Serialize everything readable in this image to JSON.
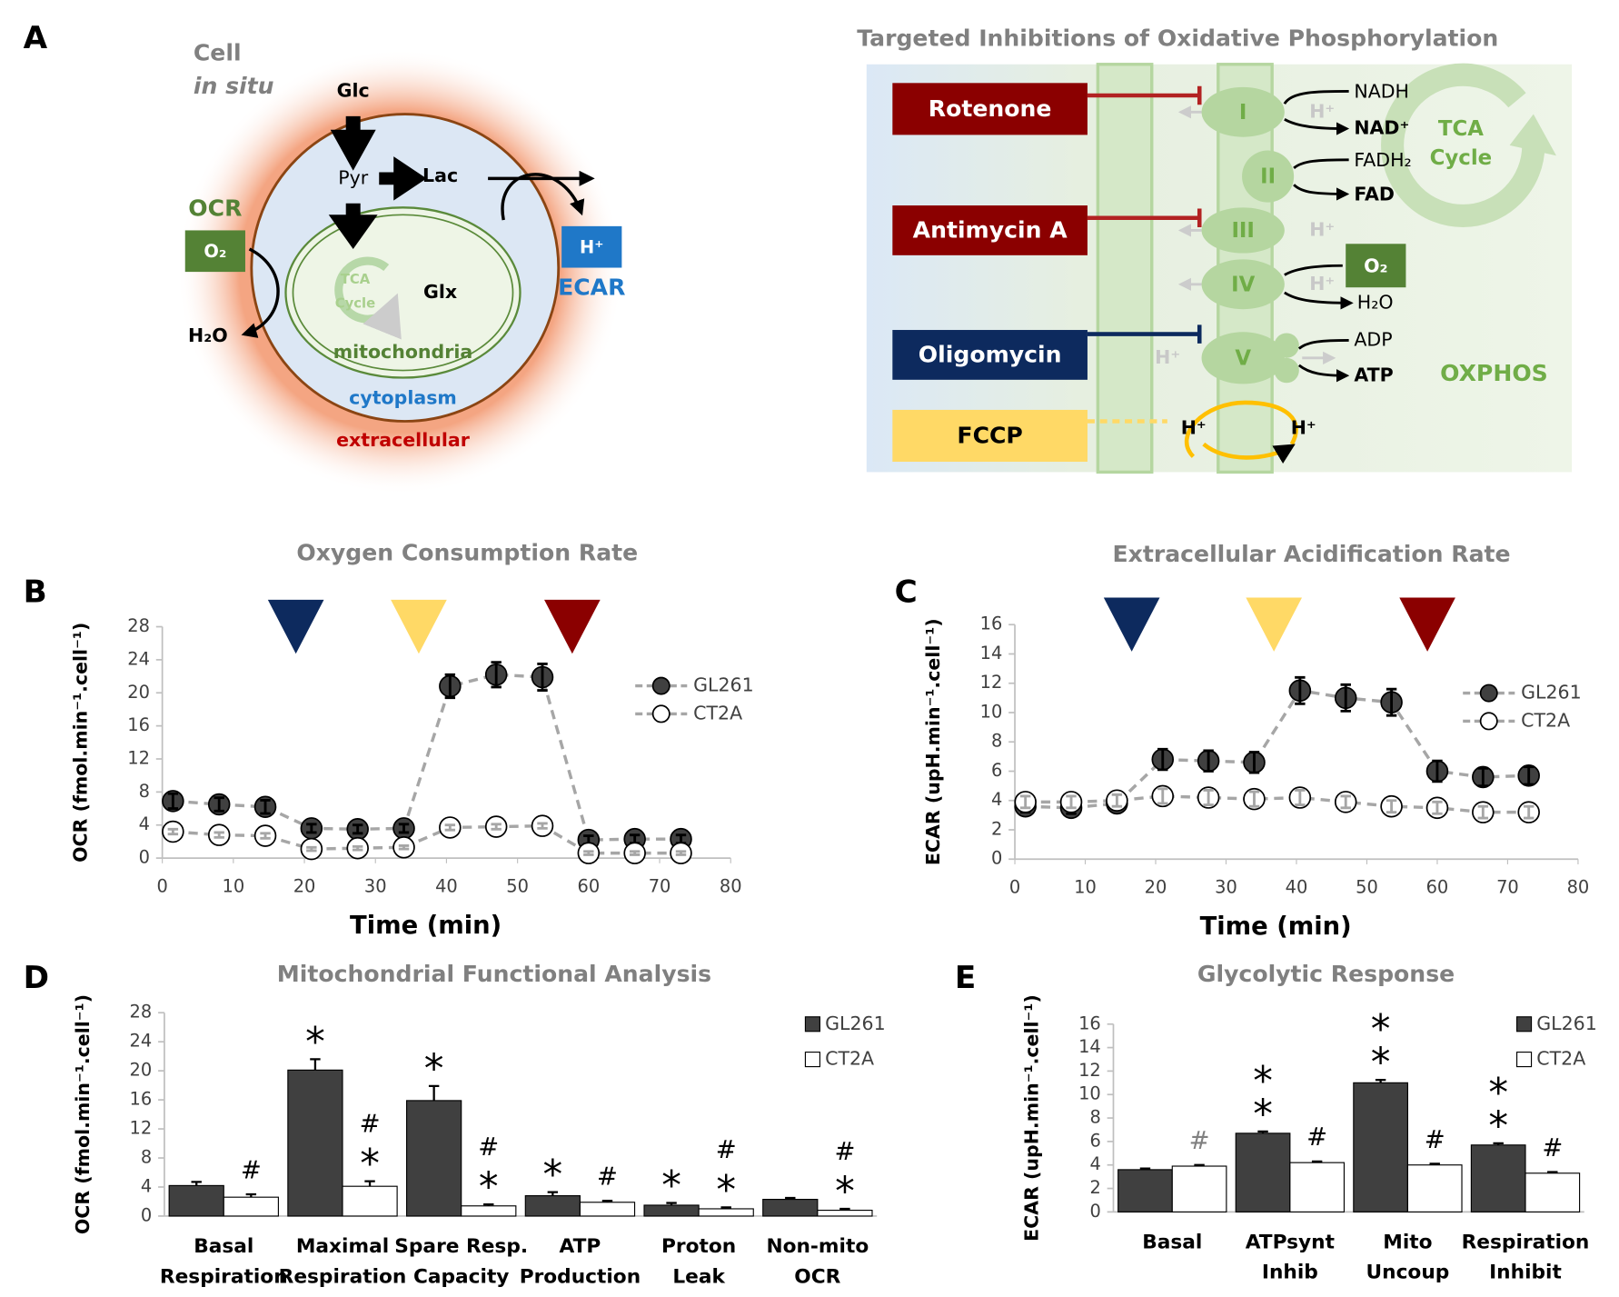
{
  "panel_labels": [
    "A",
    "B",
    "C",
    "D",
    "E"
  ],
  "cell_diagram": {
    "title": "Cell",
    "subtitle": "in situ",
    "glc": "Glc",
    "pyr": "Pyr",
    "lac": "Lac",
    "ocr": "OCR",
    "o2": "O₂",
    "h2o": "H₂O",
    "tca": [
      "TCA",
      "Cycle"
    ],
    "glx": "Glx",
    "mitochondria": "mitochondria",
    "cytoplasm": "cytoplasm",
    "extracellular": "extracellular",
    "h_plus": "H⁺",
    "ecar": "ECAR"
  },
  "oxphos_diagram": {
    "title": "Targeted Inhibitions of Oxidative Phosphorylation",
    "inhibitors": [
      "Rotenone",
      "Antimycin A",
      "Oligomycin",
      "FCCP"
    ],
    "complexes": [
      "I",
      "II",
      "III",
      "IV",
      "V"
    ],
    "nadh": "NADH",
    "nad": "NAD⁺",
    "fadh2": "FADH₂",
    "fad": "FAD",
    "o2": "O₂",
    "h2o": "H₂O",
    "adp": "ADP",
    "atp": "ATP",
    "h_plus": "H⁺",
    "tca": [
      "TCA",
      "Cycle"
    ],
    "label": "OXPHOS"
  },
  "chart_data": [
    {
      "type": "line",
      "title": "Oxygen Consumption Rate",
      "x_label": "Time (min)",
      "y_label": "OCR (fmol.min⁻¹.cell⁻¹)",
      "x": [
        1.5,
        8,
        14.5,
        21,
        27.5,
        34,
        40.5,
        47,
        53.5,
        60,
        66.5,
        73
      ],
      "series": [
        {
          "name": "GL261",
          "color": "#404040",
          "values": [
            6.9,
            6.5,
            6.2,
            3.6,
            3.5,
            3.6,
            20.8,
            22.2,
            21.9,
            2.2,
            2.3,
            2.3
          ],
          "errors": [
            0.9,
            0.8,
            0.8,
            0.5,
            0.5,
            0.5,
            1.4,
            1.5,
            1.6,
            0.5,
            0.5,
            0.5
          ]
        },
        {
          "name": "CT2A",
          "color": "#ffffff",
          "values": [
            3.2,
            2.8,
            2.7,
            1.1,
            1.2,
            1.3,
            3.7,
            3.8,
            3.9,
            0.6,
            0.6,
            0.6
          ],
          "errors": [
            0.3,
            0.3,
            0.3,
            0.2,
            0.2,
            0.2,
            0.3,
            0.3,
            0.3,
            0.2,
            0.2,
            0.2
          ]
        }
      ],
      "markers": [
        {
          "x": 18.8,
          "color": "#0d2a5e"
        },
        {
          "x": 36.1,
          "color": "#ffd966"
        },
        {
          "x": 57.7,
          "color": "#8b0000"
        }
      ],
      "xlim": [
        0,
        80
      ],
      "xticks": [
        0,
        10,
        20,
        30,
        40,
        50,
        60,
        70,
        80
      ],
      "ylim": [
        0,
        28
      ],
      "yticks": [
        0,
        4,
        8,
        12,
        16,
        20,
        24,
        28
      ],
      "grid": false,
      "legend": "right"
    },
    {
      "type": "line",
      "title": "Extracellular Acidification Rate",
      "x_label": "Time (min)",
      "y_label": "ECAR (upH.min⁻¹.cell⁻¹)",
      "x": [
        1.5,
        8,
        14.5,
        21,
        27.5,
        34,
        40.5,
        47,
        53.5,
        60,
        66.5,
        73
      ],
      "series": [
        {
          "name": "GL261",
          "color": "#404040",
          "values": [
            3.6,
            3.5,
            3.8,
            6.8,
            6.7,
            6.6,
            11.5,
            11.0,
            10.7,
            6.0,
            5.6,
            5.7
          ],
          "errors": [
            0.4,
            0.4,
            0.4,
            0.7,
            0.7,
            0.7,
            0.9,
            0.9,
            0.9,
            0.7,
            0.6,
            0.6
          ]
        },
        {
          "name": "CT2A",
          "color": "#ffffff",
          "values": [
            3.9,
            3.9,
            4.0,
            4.3,
            4.2,
            4.1,
            4.2,
            3.9,
            3.6,
            3.5,
            3.2,
            3.2
          ],
          "errors": [
            0.4,
            0.4,
            0.4,
            0.5,
            0.5,
            0.5,
            0.5,
            0.4,
            0.4,
            0.4,
            0.4,
            0.4
          ]
        }
      ],
      "markers": [
        {
          "x": 16.6,
          "color": "#0d2a5e"
        },
        {
          "x": 36.8,
          "color": "#ffd966"
        },
        {
          "x": 58.6,
          "color": "#8b0000"
        }
      ],
      "xlim": [
        0,
        80
      ],
      "xticks": [
        0,
        10,
        20,
        30,
        40,
        50,
        60,
        70,
        80
      ],
      "ylim": [
        0,
        16
      ],
      "yticks": [
        0,
        2,
        4,
        6,
        8,
        10,
        12,
        14,
        16
      ],
      "grid": false,
      "legend": "right"
    },
    {
      "type": "bar",
      "title": "Mitochondrial Functional Analysis",
      "y_label": "OCR (fmol.min⁻¹.cell⁻¹)",
      "categories": [
        [
          "Basal",
          "Respiration"
        ],
        [
          "Maximal",
          "Respiration"
        ],
        [
          "Spare Resp.",
          "Capacity"
        ],
        [
          "ATP",
          "Production"
        ],
        [
          "Proton",
          "Leak"
        ],
        [
          "Non-mito",
          "OCR"
        ]
      ],
      "series": [
        {
          "name": "GL261",
          "color": "#404040",
          "values": [
            4.2,
            20.1,
            15.9,
            2.8,
            1.5,
            2.3
          ],
          "errors": [
            0.5,
            1.5,
            2.0,
            0.5,
            0.3,
            0.2
          ],
          "annotations": [
            null,
            [
              "*"
            ],
            [
              "*"
            ],
            [
              "*"
            ],
            [
              "*"
            ],
            null
          ]
        },
        {
          "name": "CT2A",
          "color": "#ffffff",
          "values": [
            2.6,
            4.1,
            1.4,
            1.9,
            1.0,
            0.8
          ],
          "errors": [
            0.4,
            0.7,
            0.2,
            0.2,
            0.2,
            0.2
          ],
          "annotations": [
            [
              "#"
            ],
            [
              "#",
              "*"
            ],
            [
              "#",
              "*"
            ],
            [
              "#"
            ],
            [
              "#",
              "*"
            ],
            [
              "#",
              "*"
            ]
          ]
        }
      ],
      "ylim": [
        0,
        28
      ],
      "yticks": [
        0,
        4,
        8,
        12,
        16,
        20,
        24,
        28
      ],
      "grid": false,
      "legend": "upper right"
    },
    {
      "type": "bar",
      "title": "Glycolytic Response",
      "y_label": "ECAR (upH.min⁻¹.cell⁻¹)",
      "categories": [
        [
          "Basal"
        ],
        [
          "ATPsynt",
          "Inhib"
        ],
        [
          "Mito",
          "Uncoup"
        ],
        [
          "Respiration",
          "Inhibit"
        ]
      ],
      "series": [
        {
          "name": "GL261",
          "color": "#404040",
          "values": [
            3.6,
            6.7,
            11.0,
            5.7
          ],
          "errors": [
            0.1,
            0.15,
            0.25,
            0.15
          ],
          "annotations": [
            null,
            [
              "*",
              "*"
            ],
            [
              "*",
              "*"
            ],
            [
              "*",
              "*"
            ]
          ]
        },
        {
          "name": "CT2A",
          "color": "#ffffff",
          "values": [
            3.9,
            4.2,
            4.0,
            3.3
          ],
          "errors": [
            0.1,
            0.1,
            0.1,
            0.1
          ],
          "annotations": [
            [
              "#"
            ],
            [
              "#"
            ],
            [
              "#"
            ],
            [
              "#"
            ]
          ]
        }
      ],
      "ylim": [
        0,
        16
      ],
      "yticks": [
        0,
        2,
        4,
        6,
        8,
        10,
        12,
        14,
        16
      ],
      "grid": false,
      "legend": "upper right"
    }
  ]
}
